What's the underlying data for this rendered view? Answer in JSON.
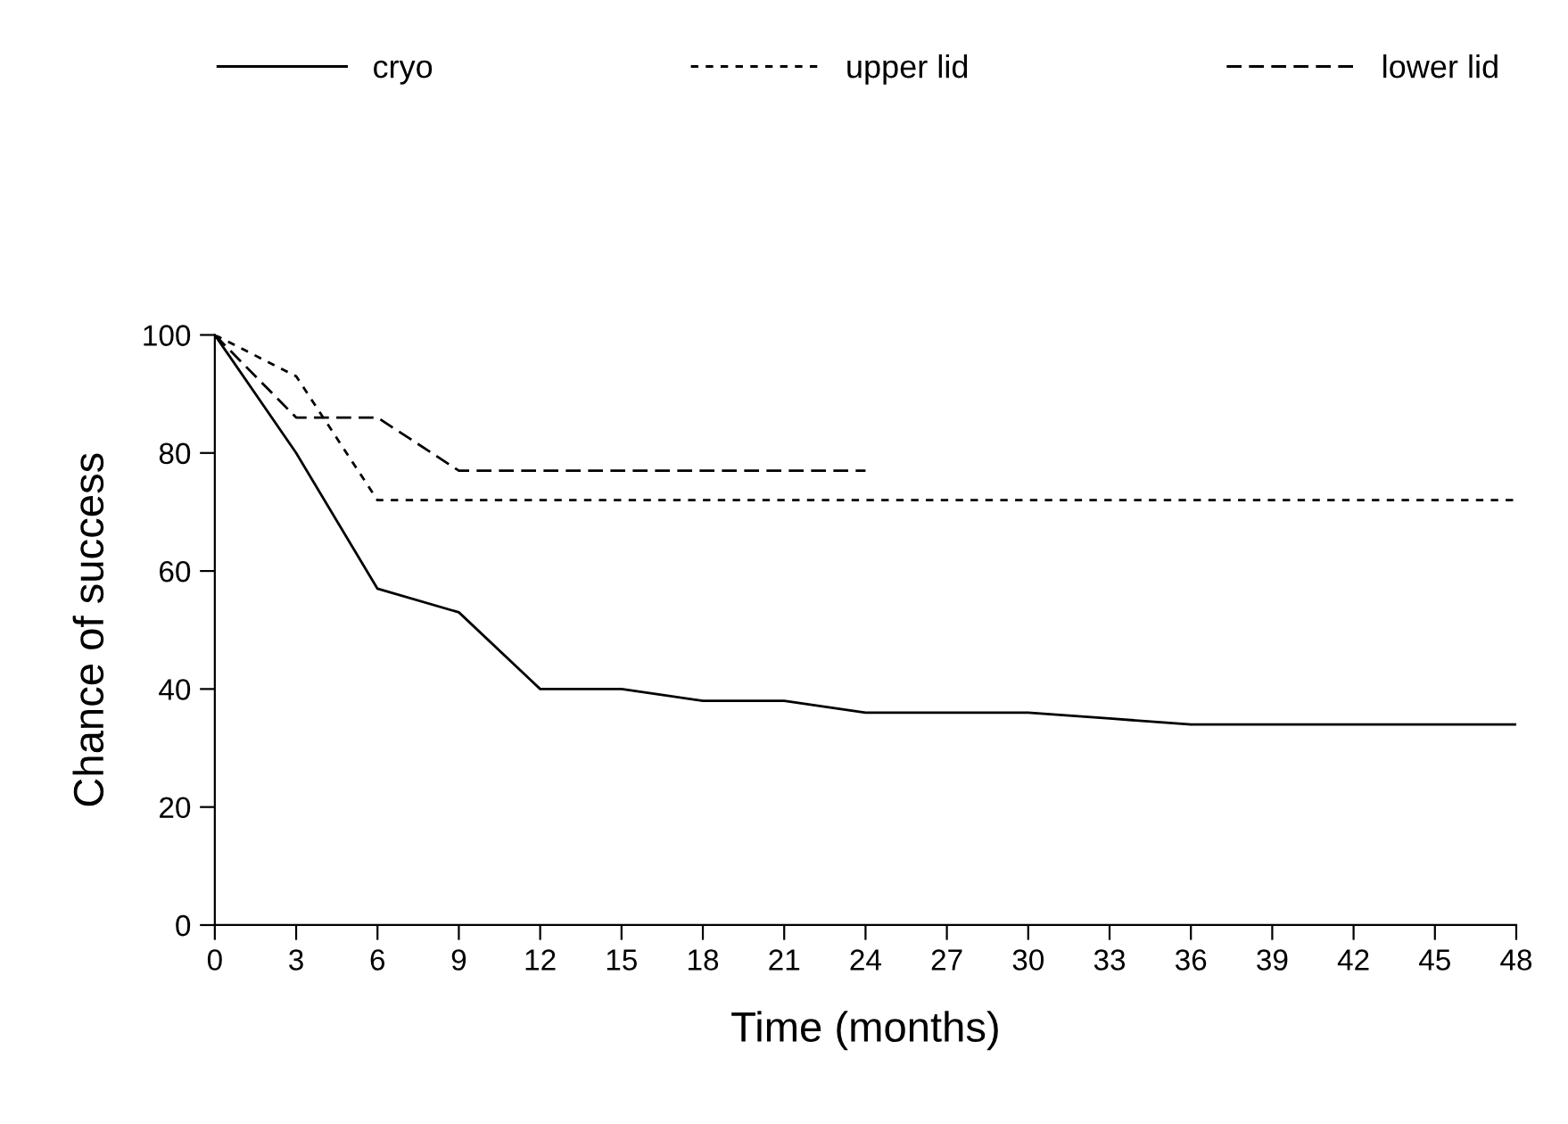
{
  "chart_data": {
    "type": "line",
    "xlabel": "Time (months)",
    "ylabel": "Chance of success",
    "xlim": [
      0,
      48
    ],
    "xticks": [
      0,
      3,
      6,
      9,
      12,
      15,
      18,
      21,
      24,
      27,
      30,
      33,
      36,
      39,
      42,
      45,
      48
    ],
    "ylim": [
      0,
      100
    ],
    "yticks": [
      0,
      20,
      40,
      60,
      80,
      100
    ],
    "grid": false,
    "legend": "top",
    "marker": "none",
    "series": [
      {
        "name": "cryo",
        "color": "#000000",
        "line_style": "solid",
        "x": [
          0,
          3,
          6,
          9,
          12,
          15,
          18,
          21,
          24,
          27,
          30,
          33,
          36,
          39,
          42,
          45,
          48
        ],
        "values": [
          100,
          80,
          57,
          53,
          40,
          40,
          38,
          38,
          36,
          36,
          36,
          35,
          34,
          34,
          34,
          34,
          34
        ]
      },
      {
        "name": "upper lid",
        "color": "#000000",
        "line_style": "dotted",
        "x": [
          0,
          3,
          6,
          48
        ],
        "values": [
          100,
          93,
          72,
          72
        ]
      },
      {
        "name": "lower lid",
        "color": "#000000",
        "line_style": "dashed",
        "x": [
          0,
          3,
          6,
          9,
          24
        ],
        "values": [
          100,
          86,
          86,
          77,
          77
        ]
      }
    ]
  }
}
